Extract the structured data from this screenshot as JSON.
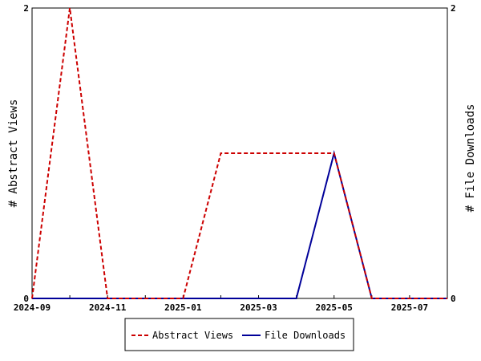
{
  "chart_data": {
    "type": "line",
    "x": [
      "2024-09",
      "2024-10",
      "2024-11",
      "2024-12",
      "2025-01",
      "2025-02",
      "2025-03",
      "2025-04",
      "2025-05",
      "2025-06",
      "2025-07",
      "2025-08"
    ],
    "x_tick_labels": [
      "2024-09",
      "2024-11",
      "2025-01",
      "2025-03",
      "2025-05",
      "2025-07"
    ],
    "series": [
      {
        "name": "Abstract Views",
        "axis": "left",
        "color": "#cc0000",
        "style": "dashed",
        "values": [
          0,
          2,
          0,
          0,
          0,
          1,
          1,
          1,
          1,
          0,
          0,
          0
        ]
      },
      {
        "name": "File Downloads",
        "axis": "right",
        "color": "#000099",
        "style": "solid",
        "values": [
          0,
          0,
          0,
          0,
          0,
          0,
          0,
          0,
          1,
          0,
          0,
          0
        ]
      }
    ],
    "ylabel_left": "# Abstract Views",
    "ylabel_right": "# File Downloads",
    "ylim_left": [
      0,
      2
    ],
    "ylim_right": [
      0,
      2
    ],
    "y_ticks_left": [
      "0",
      "2"
    ],
    "y_ticks_right": [
      "0",
      "2"
    ],
    "grid": false,
    "legend_position": "bottom"
  }
}
